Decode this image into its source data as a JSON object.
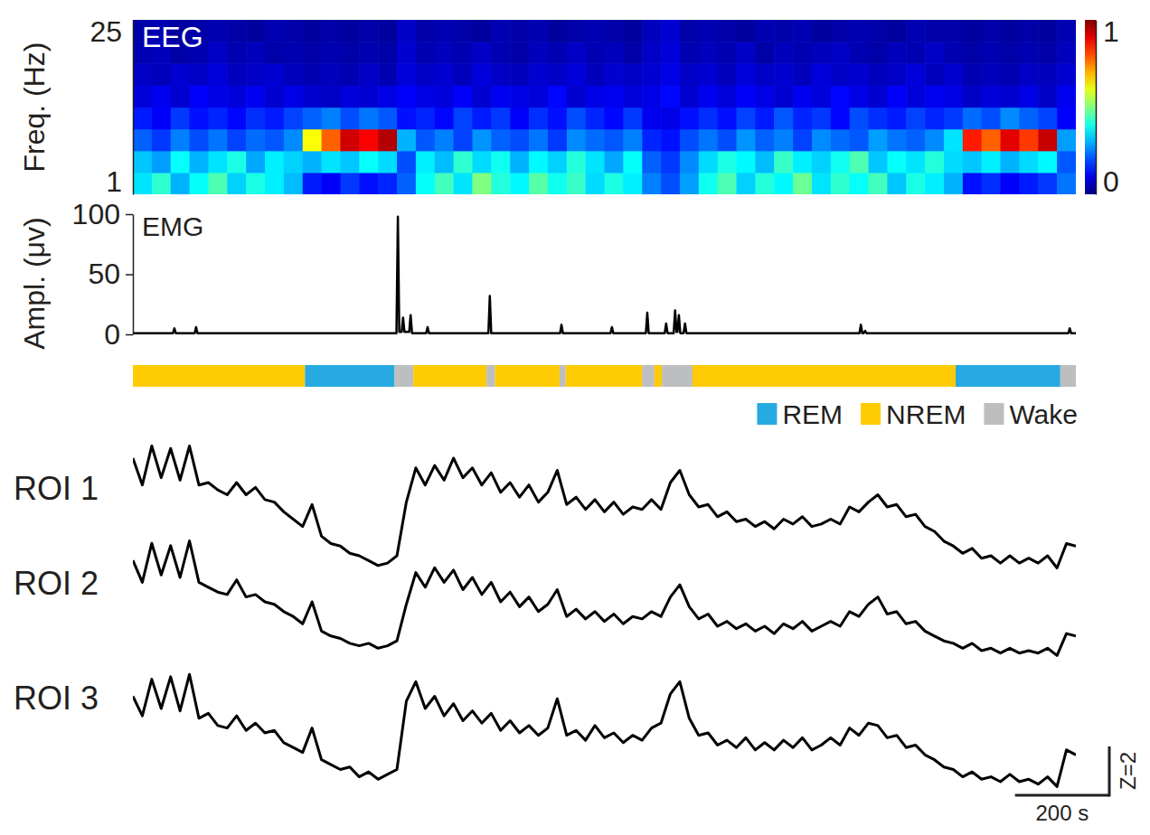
{
  "chart_data": [
    {
      "type": "heatmap",
      "title": "EEG",
      "y_label": "Freq. (Hz)",
      "xlim": [
        0,
        2000
      ],
      "ylim": [
        1,
        25
      ],
      "yticks": [
        1,
        25
      ],
      "tick_labels": "y",
      "x_bins": [
        0,
        40,
        80,
        120,
        160,
        200,
        240,
        280,
        320,
        360,
        400,
        440,
        480,
        520,
        560,
        600,
        640,
        680,
        720,
        760,
        800,
        840,
        880,
        920,
        960,
        1000,
        1040,
        1080,
        1120,
        1160,
        1200,
        1240,
        1280,
        1320,
        1360,
        1400,
        1440,
        1480,
        1520,
        1560,
        1600,
        1640,
        1680,
        1720,
        1760,
        1800,
        1840,
        1880,
        1920,
        1960,
        2000
      ],
      "y_bins": [
        1,
        4,
        7,
        10,
        13,
        16,
        19,
        22,
        25
      ],
      "cells": [
        [
          0.35,
          0.42,
          0.3,
          0.38,
          0.45,
          0.33,
          0.4,
          0.36,
          0.31,
          0.15,
          0.12,
          0.18,
          0.14,
          0.16,
          0.22,
          0.38,
          0.44,
          0.35,
          0.5,
          0.41,
          0.37,
          0.46,
          0.39,
          0.43,
          0.34,
          0.4,
          0.36,
          0.25,
          0.2,
          0.28,
          0.39,
          0.45,
          0.33,
          0.41,
          0.37,
          0.48,
          0.35,
          0.42,
          0.38,
          0.44,
          0.32,
          0.4,
          0.36,
          0.3,
          0.14,
          0.17,
          0.12,
          0.15,
          0.18,
          0.24
        ],
        [
          0.32,
          0.28,
          0.38,
          0.3,
          0.35,
          0.4,
          0.29,
          0.36,
          0.33,
          0.3,
          0.35,
          0.32,
          0.38,
          0.34,
          0.2,
          0.36,
          0.31,
          0.42,
          0.34,
          0.39,
          0.3,
          0.37,
          0.33,
          0.41,
          0.35,
          0.29,
          0.38,
          0.22,
          0.18,
          0.26,
          0.34,
          0.4,
          0.37,
          0.31,
          0.43,
          0.36,
          0.33,
          0.39,
          0.45,
          0.32,
          0.38,
          0.35,
          0.41,
          0.34,
          0.32,
          0.36,
          0.3,
          0.34,
          0.37,
          0.21
        ],
        [
          0.22,
          0.18,
          0.25,
          0.2,
          0.24,
          0.19,
          0.23,
          0.21,
          0.26,
          0.62,
          0.78,
          0.92,
          0.88,
          0.95,
          0.3,
          0.21,
          0.25,
          0.19,
          0.27,
          0.22,
          0.2,
          0.24,
          0.18,
          0.26,
          0.23,
          0.21,
          0.25,
          0.16,
          0.14,
          0.2,
          0.24,
          0.2,
          0.27,
          0.22,
          0.25,
          0.19,
          0.26,
          0.23,
          0.21,
          0.28,
          0.24,
          0.22,
          0.26,
          0.35,
          0.85,
          0.78,
          0.9,
          0.82,
          0.93,
          0.28
        ],
        [
          0.15,
          0.12,
          0.18,
          0.14,
          0.16,
          0.13,
          0.17,
          0.15,
          0.19,
          0.22,
          0.25,
          0.2,
          0.24,
          0.21,
          0.14,
          0.16,
          0.13,
          0.19,
          0.15,
          0.18,
          0.12,
          0.17,
          0.14,
          0.2,
          0.16,
          0.13,
          0.18,
          0.11,
          0.1,
          0.14,
          0.17,
          0.14,
          0.19,
          0.15,
          0.21,
          0.16,
          0.18,
          0.13,
          0.2,
          0.17,
          0.15,
          0.19,
          0.16,
          0.18,
          0.23,
          0.2,
          0.26,
          0.22,
          0.19,
          0.12
        ],
        [
          0.09,
          0.11,
          0.08,
          0.12,
          0.1,
          0.09,
          0.11,
          0.08,
          0.1,
          0.08,
          0.07,
          0.09,
          0.08,
          0.1,
          0.12,
          0.1,
          0.09,
          0.12,
          0.08,
          0.11,
          0.1,
          0.09,
          0.13,
          0.08,
          0.1,
          0.11,
          0.09,
          0.1,
          0.13,
          0.08,
          0.11,
          0.09,
          0.12,
          0.1,
          0.08,
          0.11,
          0.09,
          0.13,
          0.1,
          0.08,
          0.12,
          0.09,
          0.11,
          0.1,
          0.07,
          0.09,
          0.08,
          0.1,
          0.07,
          0.11
        ],
        [
          0.07,
          0.06,
          0.08,
          0.07,
          0.09,
          0.06,
          0.07,
          0.08,
          0.06,
          0.05,
          0.06,
          0.05,
          0.07,
          0.05,
          0.09,
          0.07,
          0.08,
          0.06,
          0.09,
          0.07,
          0.06,
          0.08,
          0.07,
          0.09,
          0.06,
          0.08,
          0.07,
          0.08,
          0.1,
          0.07,
          0.08,
          0.06,
          0.09,
          0.07,
          0.08,
          0.06,
          0.09,
          0.07,
          0.08,
          0.06,
          0.07,
          0.09,
          0.06,
          0.08,
          0.05,
          0.06,
          0.05,
          0.07,
          0.06,
          0.08
        ],
        [
          0.05,
          0.06,
          0.04,
          0.05,
          0.07,
          0.05,
          0.06,
          0.04,
          0.05,
          0.04,
          0.05,
          0.04,
          0.05,
          0.04,
          0.08,
          0.05,
          0.06,
          0.05,
          0.07,
          0.05,
          0.04,
          0.06,
          0.05,
          0.07,
          0.05,
          0.06,
          0.04,
          0.07,
          0.09,
          0.05,
          0.06,
          0.05,
          0.07,
          0.04,
          0.06,
          0.05,
          0.06,
          0.07,
          0.05,
          0.04,
          0.06,
          0.05,
          0.07,
          0.05,
          0.04,
          0.05,
          0.04,
          0.05,
          0.04,
          0.06
        ],
        [
          0.04,
          0.05,
          0.03,
          0.04,
          0.05,
          0.04,
          0.03,
          0.05,
          0.04,
          0.03,
          0.04,
          0.03,
          0.04,
          0.03,
          0.07,
          0.04,
          0.05,
          0.04,
          0.03,
          0.05,
          0.04,
          0.05,
          0.03,
          0.04,
          0.05,
          0.04,
          0.03,
          0.06,
          0.08,
          0.04,
          0.05,
          0.04,
          0.03,
          0.05,
          0.04,
          0.05,
          0.03,
          0.04,
          0.05,
          0.04,
          0.03,
          0.05,
          0.04,
          0.04,
          0.03,
          0.04,
          0.03,
          0.04,
          0.03,
          0.05
        ]
      ],
      "colorbar": {
        "range": [
          0,
          1
        ],
        "ticks": [
          0,
          1
        ]
      }
    },
    {
      "type": "line",
      "title": "EMG",
      "y_label": "Ampl. (μv)",
      "xlim": [
        0,
        2000
      ],
      "ylim": [
        0,
        100
      ],
      "yticks": [
        0,
        50,
        100
      ],
      "tick_labels": "y",
      "x": [
        0,
        85,
        88,
        91,
        131,
        134,
        137,
        559,
        562,
        565,
        570,
        573,
        576,
        586,
        589,
        592,
        622,
        625,
        628,
        754,
        757,
        760,
        906,
        909,
        912,
        1013,
        1016,
        1019,
        1088,
        1091,
        1094,
        1128,
        1131,
        1134,
        1147,
        1150,
        1153,
        1155,
        1158,
        1161,
        1168,
        1171,
        1174,
        1541,
        1544,
        1547,
        1550,
        1553,
        1556,
        1984,
        1987,
        1990,
        2000
      ],
      "values": [
        1,
        1,
        5,
        1,
        1,
        6,
        1,
        1,
        98,
        2,
        2,
        14,
        2,
        2,
        16,
        1,
        1,
        6,
        1,
        1,
        32,
        1,
        1,
        8,
        1,
        1,
        6,
        1,
        1,
        18,
        1,
        1,
        9,
        1,
        1,
        20,
        2,
        2,
        16,
        1,
        1,
        9,
        1,
        1,
        8,
        1,
        1,
        3,
        1,
        1,
        5,
        1,
        1
      ],
      "color": "#000000"
    },
    {
      "type": "timeline",
      "xlim": [
        0,
        2000
      ],
      "tick_labels": false,
      "legend": "bottom right",
      "series": [
        {
          "name": "REM",
          "color": "#27aae1"
        },
        {
          "name": "NREM",
          "color": "#ffcb05"
        },
        {
          "name": "Wake",
          "color": "#bcbec0"
        }
      ],
      "segments": [
        {
          "start": 0,
          "end": 365,
          "state": "NREM"
        },
        {
          "start": 365,
          "end": 555,
          "state": "REM"
        },
        {
          "start": 555,
          "end": 595,
          "state": "Wake"
        },
        {
          "start": 595,
          "end": 750,
          "state": "NREM"
        },
        {
          "start": 750,
          "end": 768,
          "state": "Wake"
        },
        {
          "start": 768,
          "end": 905,
          "state": "NREM"
        },
        {
          "start": 905,
          "end": 918,
          "state": "Wake"
        },
        {
          "start": 918,
          "end": 1080,
          "state": "NREM"
        },
        {
          "start": 1080,
          "end": 1106,
          "state": "Wake"
        },
        {
          "start": 1106,
          "end": 1122,
          "state": "NREM"
        },
        {
          "start": 1122,
          "end": 1187,
          "state": "Wake"
        },
        {
          "start": 1187,
          "end": 1745,
          "state": "NREM"
        },
        {
          "start": 1745,
          "end": 1967,
          "state": "REM"
        },
        {
          "start": 1967,
          "end": 2000,
          "state": "Wake"
        }
      ]
    },
    {
      "type": "line",
      "xlim": [
        0,
        2000
      ],
      "ylim": [
        -2,
        4
      ],
      "tick_labels": false,
      "x": [
        0,
        20,
        40,
        60,
        80,
        100,
        120,
        140,
        160,
        180,
        200,
        220,
        240,
        260,
        280,
        300,
        320,
        340,
        360,
        380,
        400,
        420,
        440,
        460,
        480,
        500,
        520,
        540,
        560,
        580,
        600,
        620,
        640,
        660,
        680,
        700,
        720,
        740,
        760,
        780,
        800,
        820,
        840,
        860,
        880,
        900,
        920,
        940,
        960,
        980,
        1000,
        1020,
        1040,
        1060,
        1080,
        1100,
        1120,
        1140,
        1160,
        1180,
        1200,
        1220,
        1240,
        1260,
        1280,
        1300,
        1320,
        1340,
        1360,
        1380,
        1400,
        1420,
        1440,
        1460,
        1480,
        1500,
        1520,
        1540,
        1560,
        1580,
        1600,
        1620,
        1640,
        1660,
        1680,
        1700,
        1720,
        1740,
        1760,
        1780,
        1800,
        1820,
        1840,
        1860,
        1880,
        1900,
        1920,
        1940,
        1960,
        1980,
        2000
      ],
      "series": [
        {
          "name": "ROI 1",
          "color": "#000000",
          "values": [
            3.0,
            1.9,
            3.5,
            2.2,
            3.4,
            2.1,
            3.5,
            1.9,
            2.0,
            1.7,
            1.5,
            2.0,
            1.5,
            1.8,
            1.3,
            1.2,
            0.8,
            0.5,
            0.2,
            1.1,
            -0.2,
            -0.5,
            -0.6,
            -0.9,
            -1.0,
            -1.2,
            -1.4,
            -1.3,
            -1.0,
            1.2,
            2.6,
            1.9,
            2.7,
            2.1,
            3.0,
            2.2,
            2.6,
            1.9,
            2.4,
            1.6,
            2.0,
            1.4,
            1.9,
            1.2,
            1.6,
            2.5,
            1.1,
            1.4,
            0.9,
            1.3,
            0.8,
            1.2,
            0.7,
            1.0,
            0.9,
            1.3,
            0.9,
            2.0,
            2.5,
            1.5,
            1.0,
            1.1,
            0.6,
            0.8,
            0.4,
            0.5,
            0.2,
            0.4,
            0.1,
            0.5,
            0.3,
            0.6,
            0.2,
            0.3,
            0.5,
            0.3,
            1.0,
            0.8,
            1.2,
            1.5,
            1.0,
            1.1,
            0.6,
            0.7,
            0.2,
            0.0,
            -0.4,
            -0.6,
            -0.9,
            -0.7,
            -1.1,
            -1.0,
            -1.3,
            -1.0,
            -1.3,
            -1.1,
            -1.3,
            -1.0,
            -1.5,
            -0.5,
            -0.6
          ]
        },
        {
          "name": "ROI 2",
          "color": "#000000",
          "values": [
            2.7,
            1.8,
            3.4,
            2.1,
            3.3,
            2.0,
            3.5,
            1.8,
            1.6,
            1.4,
            1.3,
            1.9,
            1.2,
            1.3,
            1.0,
            0.9,
            0.6,
            0.4,
            0.1,
            1.0,
            -0.2,
            -0.4,
            -0.5,
            -0.7,
            -0.8,
            -0.7,
            -0.9,
            -0.8,
            -0.6,
            0.9,
            2.2,
            1.6,
            2.4,
            1.8,
            2.3,
            1.5,
            2.0,
            1.3,
            1.8,
            1.0,
            1.4,
            0.8,
            1.2,
            0.6,
            0.9,
            1.5,
            0.4,
            0.7,
            0.3,
            0.6,
            0.2,
            0.5,
            0.1,
            0.4,
            0.3,
            0.6,
            0.4,
            1.2,
            1.7,
            0.8,
            0.3,
            0.5,
            0.0,
            0.2,
            -0.1,
            0.1,
            -0.2,
            0.0,
            -0.3,
            0.1,
            -0.1,
            0.2,
            -0.2,
            0.0,
            0.2,
            0.0,
            0.6,
            0.4,
            0.9,
            1.2,
            0.5,
            0.6,
            0.1,
            0.2,
            -0.2,
            -0.4,
            -0.6,
            -0.7,
            -0.9,
            -0.7,
            -1.0,
            -0.9,
            -1.1,
            -0.9,
            -1.1,
            -1.0,
            -1.1,
            -0.9,
            -1.2,
            -0.3,
            -0.4
          ]
        },
        {
          "name": "ROI 3",
          "color": "#000000",
          "values": [
            2.5,
            1.7,
            3.2,
            2.0,
            3.3,
            1.9,
            3.4,
            1.6,
            1.8,
            1.3,
            1.2,
            1.7,
            1.1,
            1.4,
            1.0,
            1.1,
            0.6,
            0.4,
            0.2,
            1.2,
            -0.1,
            -0.3,
            -0.5,
            -0.4,
            -0.8,
            -0.6,
            -0.9,
            -0.7,
            -0.5,
            2.3,
            3.1,
            2.0,
            2.5,
            1.7,
            2.2,
            1.5,
            1.9,
            1.4,
            1.8,
            1.1,
            1.5,
            1.0,
            1.3,
            0.9,
            1.2,
            2.4,
            0.9,
            1.1,
            0.7,
            1.3,
            0.8,
            1.0,
            0.6,
            0.9,
            0.7,
            1.2,
            1.4,
            2.6,
            3.1,
            1.6,
            0.9,
            1.0,
            0.5,
            0.7,
            0.4,
            0.8,
            0.3,
            0.6,
            0.3,
            0.7,
            0.4,
            0.8,
            0.3,
            0.5,
            0.8,
            0.5,
            1.2,
            0.9,
            1.4,
            1.3,
            0.8,
            0.9,
            0.4,
            0.5,
            0.1,
            -0.1,
            -0.4,
            -0.5,
            -0.8,
            -0.6,
            -0.9,
            -0.8,
            -1.0,
            -0.7,
            -1.0,
            -0.9,
            -1.1,
            -0.8,
            -1.2,
            0.3,
            0.1
          ]
        }
      ],
      "x_scale_bar": {
        "value": 200,
        "label": "200 s"
      },
      "y_scale_bar": {
        "value": 2,
        "label": "Z=2"
      }
    }
  ]
}
